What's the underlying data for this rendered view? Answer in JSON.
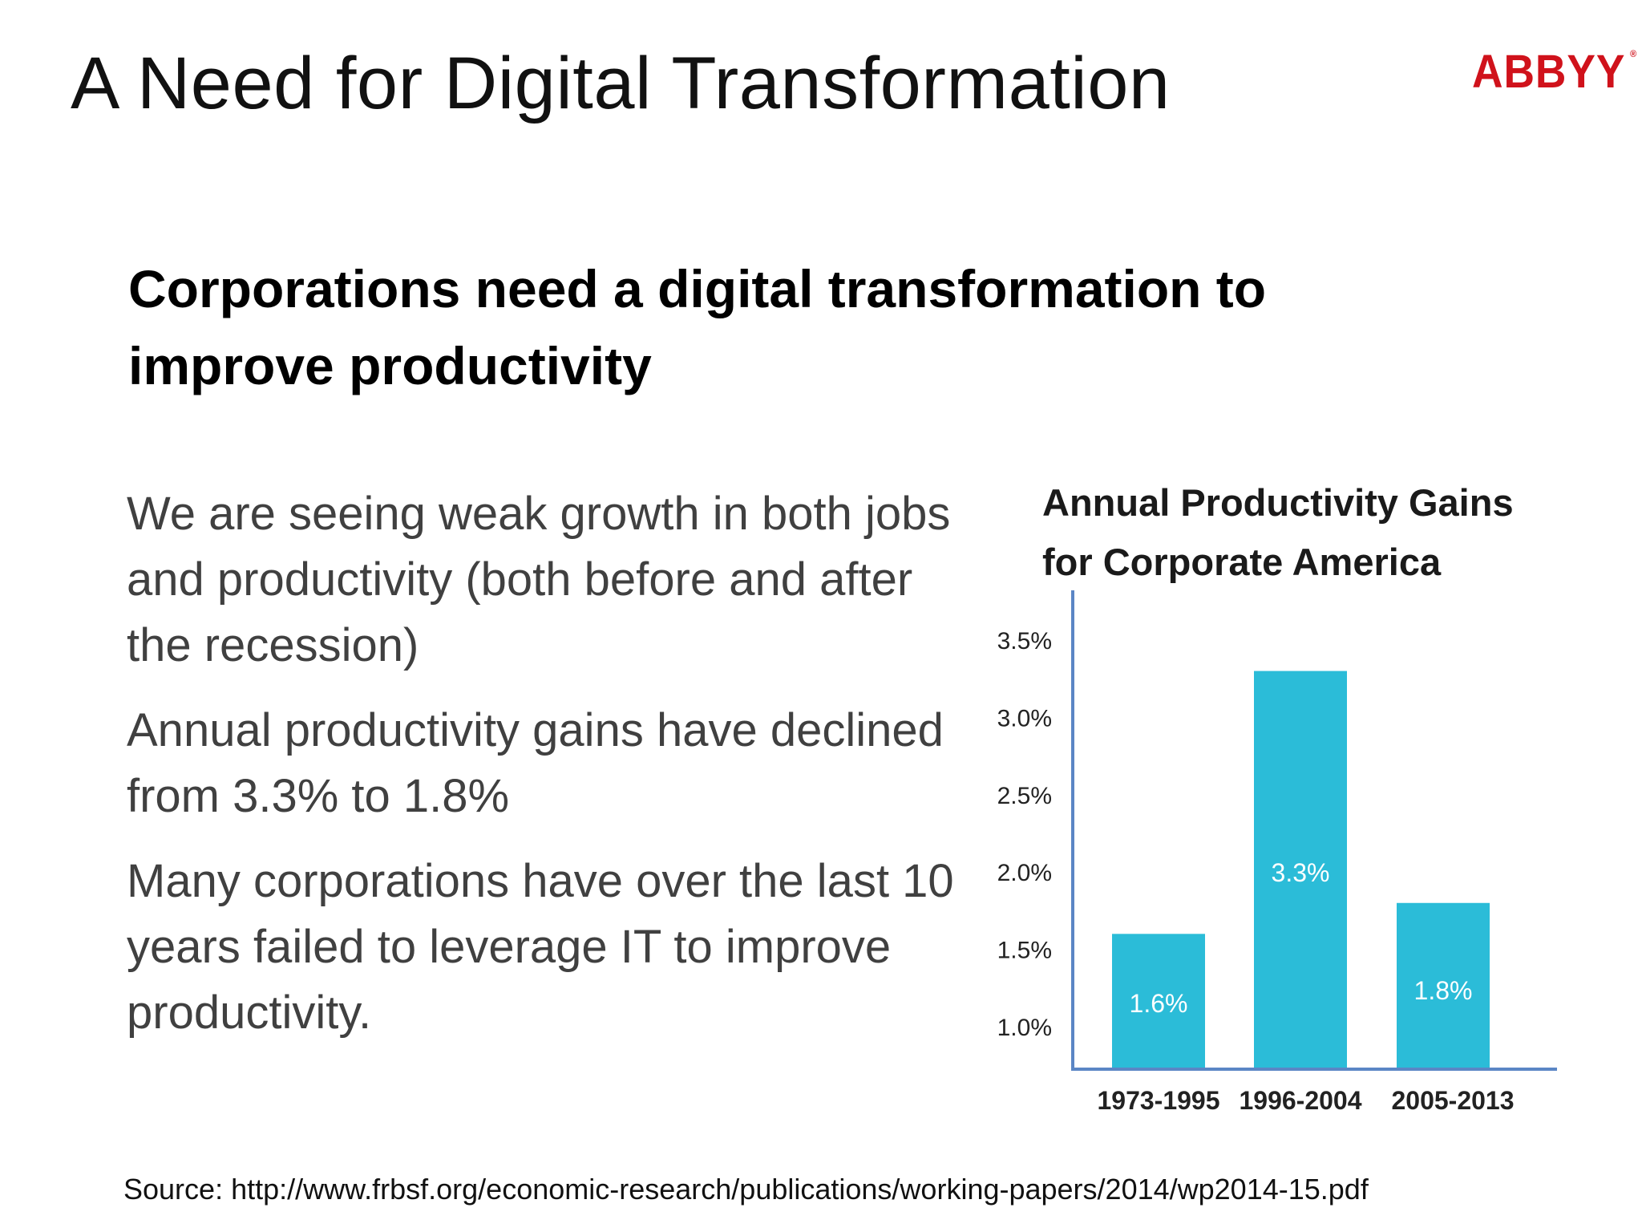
{
  "slide": {
    "title": "A Need for Digital Transformation",
    "logo_text": "ABBYY",
    "logo_mark": "®",
    "subheading": "Corporations need a digital transformation to improve productivity",
    "bullets": [
      "We are seeing weak growth in both jobs and productivity (both before and after the recession)",
      "Annual productivity gains have declined from 3.3% to 1.8%",
      "Many corporations have over the last 10 years failed to leverage IT to improve productivity."
    ],
    "source": "Source: http://www.frbsf.org/economic-research/publications/working-papers/2014/wp2014-15.pdf"
  },
  "colors": {
    "bar": "#2bbcd8",
    "axis": "#5b86c5",
    "logo": "#d0121b"
  },
  "chart_data": {
    "type": "bar",
    "title": "Annual Productivity Gains\nfor Corporate America",
    "categories": [
      "1973-1995",
      "1996-2004",
      "2005-2013"
    ],
    "values": [
      1.6,
      3.3,
      1.8
    ],
    "data_labels": [
      "1.6%",
      "3.3%",
      "1.8%"
    ],
    "y_ticks": [
      1.0,
      1.5,
      2.0,
      2.5,
      3.0,
      3.5
    ],
    "y_tick_labels": [
      "1.0%",
      "1.5%",
      "2.0%",
      "2.5%",
      "3.0%",
      "3.5%"
    ],
    "ylim": [
      0.7,
      3.6
    ],
    "grid": false,
    "legend": "none"
  }
}
